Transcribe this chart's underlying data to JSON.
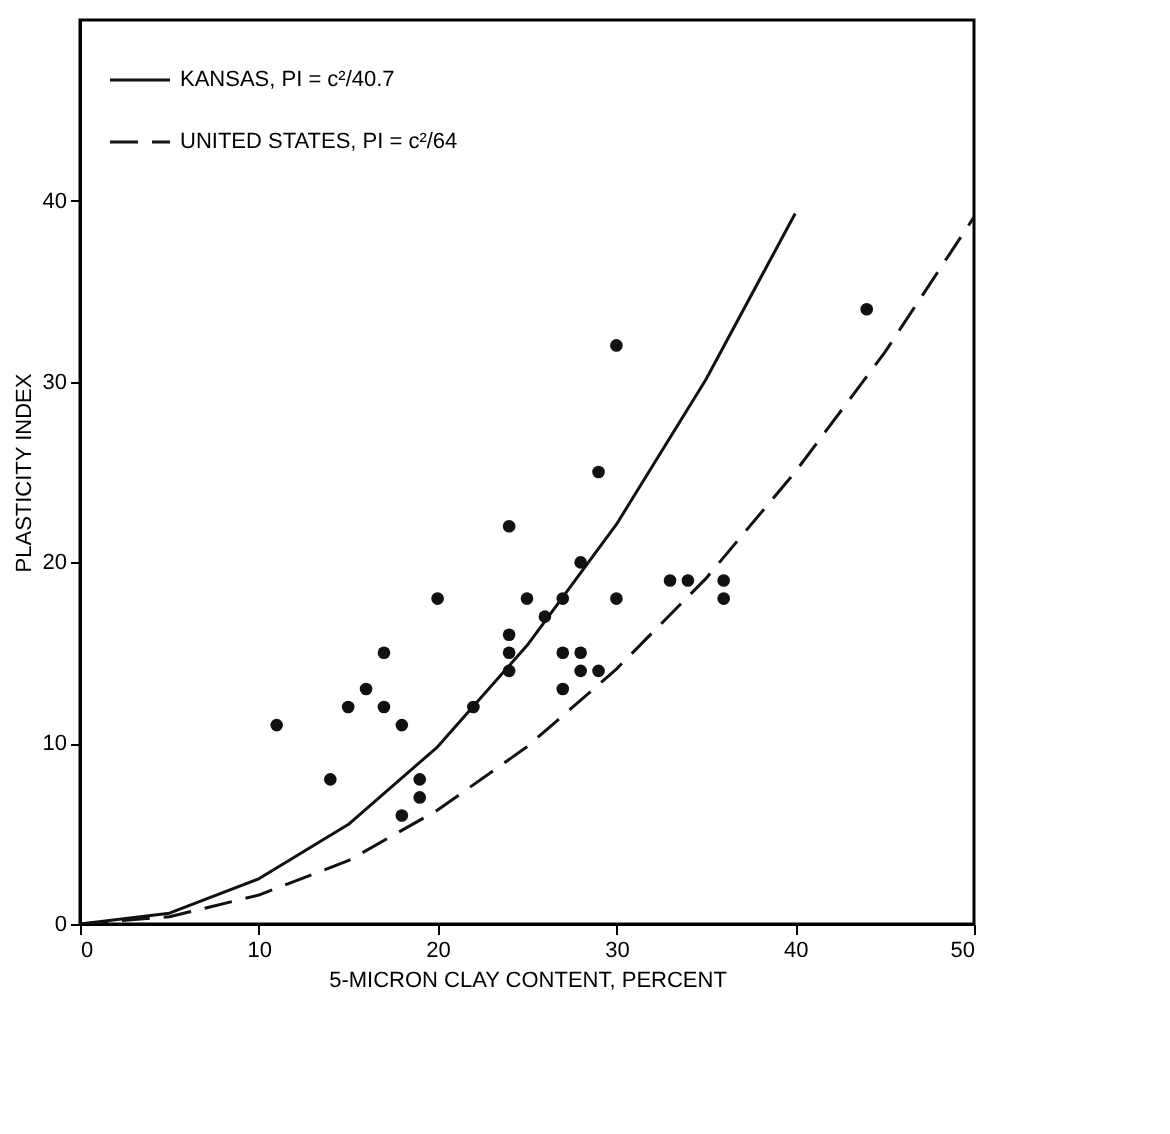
{
  "chart_data": {
    "type": "scatter",
    "xlabel": "5-MICRON CLAY CONTENT, PERCENT",
    "ylabel": "PLASTICITY INDEX",
    "xlim": [
      0,
      50
    ],
    "ylim": [
      0,
      50
    ],
    "xticks": [
      0,
      10,
      20,
      30,
      40,
      50
    ],
    "yticks": [
      0,
      10,
      20,
      30,
      40
    ],
    "grid": false,
    "legend": "top left",
    "series": [
      {
        "name": "KANSAS, PI = c²/40.7",
        "type": "line",
        "line_style": "solid",
        "marker": "none",
        "color": "#111111",
        "x": [
          0,
          5,
          10,
          15,
          20,
          25,
          30,
          35,
          40
        ],
        "values": [
          0,
          0.6,
          2.5,
          5.5,
          9.8,
          15.4,
          22.1,
          30.1,
          39.3
        ]
      },
      {
        "name": "UNITED STATES, PI = c²/64",
        "type": "line",
        "line_style": "dashed",
        "marker": "none",
        "color": "#111111",
        "x": [
          0,
          5,
          10,
          15,
          20,
          25,
          30,
          35,
          40,
          45,
          50
        ],
        "values": [
          0,
          0.4,
          1.6,
          3.5,
          6.3,
          9.8,
          14.1,
          19.1,
          25,
          31.6,
          39.1
        ]
      },
      {
        "marker": "circle",
        "color": "#111111",
        "x": [
          11,
          14,
          15,
          16,
          17,
          17,
          18,
          18,
          19,
          19,
          20,
          22,
          24,
          24,
          24,
          24,
          25,
          26,
          27,
          27,
          27,
          28,
          28,
          28,
          29,
          29,
          30,
          30,
          33,
          34,
          36,
          36,
          44
        ],
        "values": [
          11,
          8,
          12,
          13,
          15,
          12,
          11,
          6,
          8,
          7,
          18,
          12,
          22,
          16,
          15,
          14,
          18,
          17,
          18,
          15,
          13,
          20,
          15,
          14,
          25,
          14,
          32,
          18,
          19,
          19,
          19,
          18,
          34
        ]
      }
    ]
  }
}
